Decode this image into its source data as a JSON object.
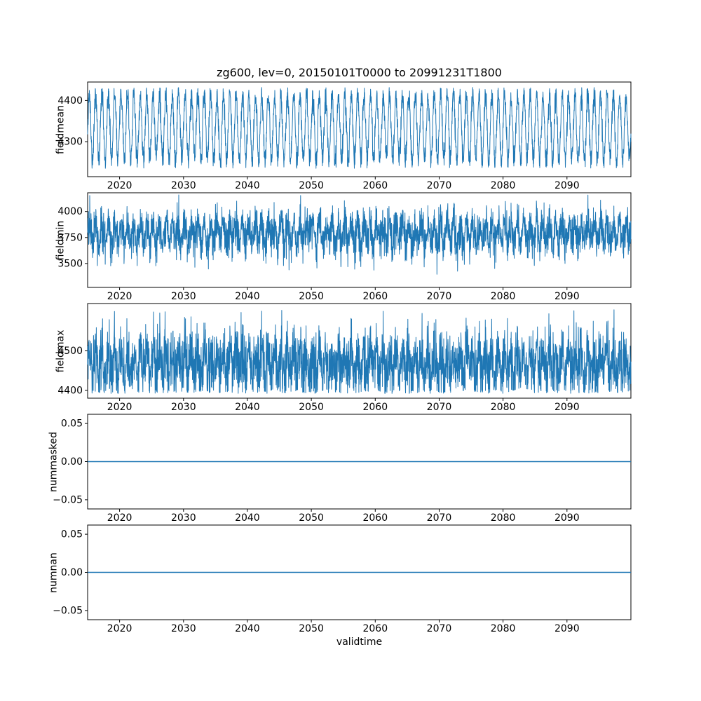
{
  "figure": {
    "title": "zg600, lev=0, 20150101T0000 to 20991231T1800",
    "xlabel": "validtime",
    "line_color": "#1f77b4",
    "axis_color": "#000000",
    "background": "#ffffff"
  },
  "chart_data": [
    {
      "type": "line",
      "ylabel": "fieldmean",
      "x_range": [
        2015,
        2100
      ],
      "xticks": [
        2020,
        2030,
        2040,
        2050,
        2060,
        2070,
        2080,
        2090
      ],
      "xtick_labels": [
        "2020",
        "2030",
        "2040",
        "2050",
        "2060",
        "2070",
        "2080",
        "2090"
      ],
      "ylim": [
        4215,
        4445
      ],
      "yticks": [
        4300,
        4400
      ],
      "ytick_labels": [
        "4300",
        "4400"
      ],
      "grid": false,
      "legend": null,
      "series": {
        "name": "fieldmean",
        "kind": "noisy-seasonal",
        "mean": 4335,
        "seasonal_amplitude": 80,
        "noise_std": 15,
        "min": 4235,
        "max": 4432,
        "points_per_year": 36,
        "seed": 11
      }
    },
    {
      "type": "line",
      "ylabel": "fieldmin",
      "x_range": [
        2015,
        2100
      ],
      "xticks": [
        2020,
        2030,
        2040,
        2050,
        2060,
        2070,
        2080,
        2090
      ],
      "xtick_labels": [
        "2020",
        "2030",
        "2040",
        "2050",
        "2060",
        "2070",
        "2080",
        "2090"
      ],
      "ylim": [
        3270,
        4180
      ],
      "yticks": [
        3500,
        3750,
        4000
      ],
      "ytick_labels": [
        "3500",
        "3750",
        "4000"
      ],
      "grid": false,
      "legend": null,
      "series": {
        "name": "fieldmin",
        "kind": "noisy-seasonal",
        "mean": 3790,
        "seasonal_amplitude": 90,
        "noise_std": 100,
        "min": 3305,
        "max": 4160,
        "points_per_year": 36,
        "seed": 22
      }
    },
    {
      "type": "line",
      "ylabel": "fieldmax",
      "x_range": [
        2015,
        2100
      ],
      "xticks": [
        2020,
        2030,
        2040,
        2050,
        2060,
        2070,
        2080,
        2090
      ],
      "xtick_labels": [
        "2020",
        "2030",
        "2040",
        "2050",
        "2060",
        "2070",
        "2080",
        "2090"
      ],
      "ylim": [
        4380,
        4620
      ],
      "yticks": [
        4400,
        4500
      ],
      "ytick_labels": [
        "4400",
        "4500"
      ],
      "grid": false,
      "legend": null,
      "series": {
        "name": "fieldmax",
        "kind": "noisy-seasonal",
        "mean": 4468,
        "seasonal_amplitude": 30,
        "noise_std": 40,
        "min": 4392,
        "max": 4605,
        "points_per_year": 36,
        "seed": 33
      }
    },
    {
      "type": "line",
      "ylabel": "nummasked",
      "x_range": [
        2015,
        2100
      ],
      "xticks": [
        2020,
        2030,
        2040,
        2050,
        2060,
        2070,
        2080,
        2090
      ],
      "xtick_labels": [
        "2020",
        "2030",
        "2040",
        "2050",
        "2060",
        "2070",
        "2080",
        "2090"
      ],
      "ylim": [
        -0.062,
        0.062
      ],
      "yticks": [
        -0.05,
        0.0,
        0.05
      ],
      "ytick_labels": [
        "−0.05",
        "0.00",
        "0.05"
      ],
      "grid": false,
      "legend": null,
      "series": {
        "name": "nummasked",
        "kind": "constant",
        "value": 0
      }
    },
    {
      "type": "line",
      "ylabel": "numnan",
      "xlabel": "validtime",
      "x_range": [
        2015,
        2100
      ],
      "xticks": [
        2020,
        2030,
        2040,
        2050,
        2060,
        2070,
        2080,
        2090
      ],
      "xtick_labels": [
        "2020",
        "2030",
        "2040",
        "2050",
        "2060",
        "2070",
        "2080",
        "2090"
      ],
      "ylim": [
        -0.062,
        0.062
      ],
      "yticks": [
        -0.05,
        0.0,
        0.05
      ],
      "ytick_labels": [
        "−0.05",
        "0.00",
        "0.05"
      ],
      "grid": false,
      "legend": null,
      "series": {
        "name": "numnan",
        "kind": "constant",
        "value": 0
      }
    }
  ]
}
